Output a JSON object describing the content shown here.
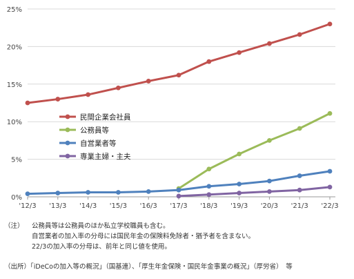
{
  "chart_data": {
    "type": "line",
    "x": [
      "'12/3",
      "'13/3",
      "'14/3",
      "'15/3",
      "'16/3",
      "'17/3",
      "'18/3",
      "'19/3",
      "'20/3",
      "'21/3",
      "'22/3"
    ],
    "ylim": [
      0,
      25
    ],
    "yticks": [
      0,
      5,
      10,
      15,
      20,
      25
    ],
    "ytick_labels": [
      "0%",
      "5%",
      "10%",
      "15%",
      "20%",
      "25%"
    ],
    "grid": true,
    "legend_position": "center-left",
    "series": [
      {
        "name": "民間企業会社員",
        "color": "#c0504d",
        "values": [
          12.5,
          13.0,
          13.6,
          14.5,
          15.4,
          16.2,
          18.0,
          19.2,
          20.4,
          21.6,
          23.0
        ]
      },
      {
        "name": "公務員等",
        "color": "#9bbb59",
        "values": [
          null,
          null,
          null,
          null,
          null,
          1.1,
          3.7,
          5.7,
          7.5,
          9.1,
          11.1
        ]
      },
      {
        "name": "自営業者等",
        "color": "#4f81bd",
        "values": [
          0.4,
          0.5,
          0.6,
          0.6,
          0.7,
          0.9,
          1.4,
          1.7,
          2.1,
          2.8,
          3.4
        ]
      },
      {
        "name": "専業主婦・主夫",
        "color": "#8064a2",
        "values": [
          null,
          null,
          null,
          null,
          null,
          0.1,
          0.3,
          0.5,
          0.7,
          0.9,
          1.3
        ]
      }
    ]
  },
  "notes": {
    "lead": "（注）",
    "lines": [
      "公務員等は公務員のほか私立学校職員も含む。",
      "自営業者の加入率の分母には国民年金の保険料免除者・猶予者を含まない。",
      "22/3の加入率の分母は、前年と同じ値を使用。"
    ]
  },
  "source": "（出所）「iDeCoの加入等の概況」（国基連）、「厚生年金保険・国民年金事業の概況」（厚労省）　等"
}
